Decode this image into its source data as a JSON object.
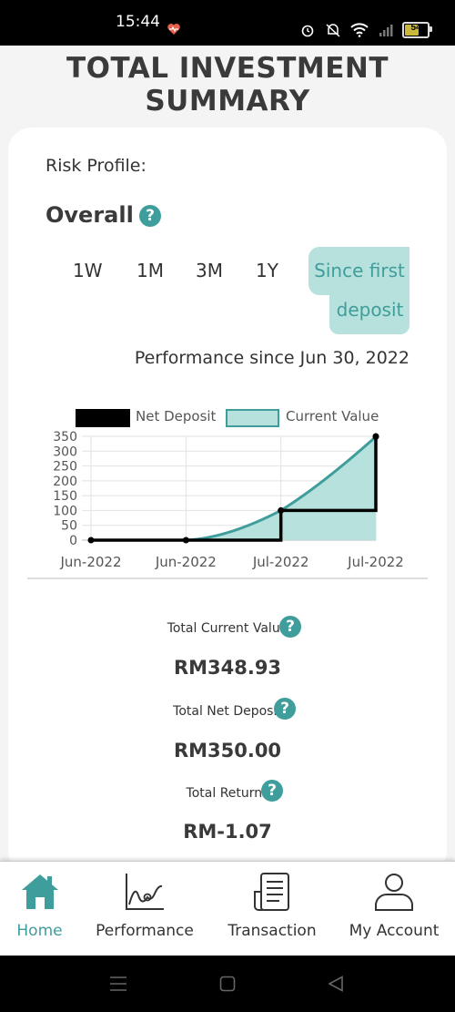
{
  "status_bar": {
    "time": "15:44",
    "battery": "54"
  },
  "header": {
    "title_line1": "TOTAL INVESTMENT",
    "title_line2": "SUMMARY"
  },
  "risk_profile": {
    "label": "Risk Profile:"
  },
  "section": {
    "title": "Overall"
  },
  "tabs": [
    {
      "label": "1W",
      "active": false
    },
    {
      "label": "1M",
      "active": false
    },
    {
      "label": "3M",
      "active": false
    },
    {
      "label": "1Y",
      "active": false
    },
    {
      "label_line1": "Since first",
      "label_line2": "deposit",
      "active": true
    }
  ],
  "performance_since": "Performance since Jun 30, 2022",
  "colors": {
    "accent": "#3f9d9c",
    "area_fill": "#b7e1dc",
    "net_deposit": "#000000"
  },
  "chart_data": {
    "type": "line",
    "legend": [
      "Net Deposit",
      "Current Value"
    ],
    "legend_position": "top",
    "x": [
      "Jun-2022",
      "Jun-2022",
      "Jul-2022",
      "Jul-2022"
    ],
    "y_ticks": [
      "350",
      "300",
      "250",
      "200",
      "150",
      "100",
      "50",
      "0"
    ],
    "ylim": [
      0,
      350
    ],
    "grid": true,
    "series": [
      {
        "name": "Net Deposit",
        "values": [
          0,
          0,
          100,
          350
        ]
      },
      {
        "name": "Current Value",
        "values": [
          0,
          0,
          100,
          348.93
        ]
      }
    ]
  },
  "summary": {
    "current_value_label": "Total Current Value",
    "current_value": "RM348.93",
    "net_deposit_label": "Total Net Deposit",
    "net_deposit": "RM350.00",
    "returns_label": "Total Returns",
    "returns": "RM-1.07"
  },
  "bottom_nav": [
    {
      "label": "Home",
      "icon": "home-icon",
      "active": true
    },
    {
      "label": "Performance",
      "icon": "chart-icon",
      "active": false
    },
    {
      "label": "Transaction",
      "icon": "document-icon",
      "active": false
    },
    {
      "label": "My Account",
      "icon": "user-icon",
      "active": false
    }
  ]
}
